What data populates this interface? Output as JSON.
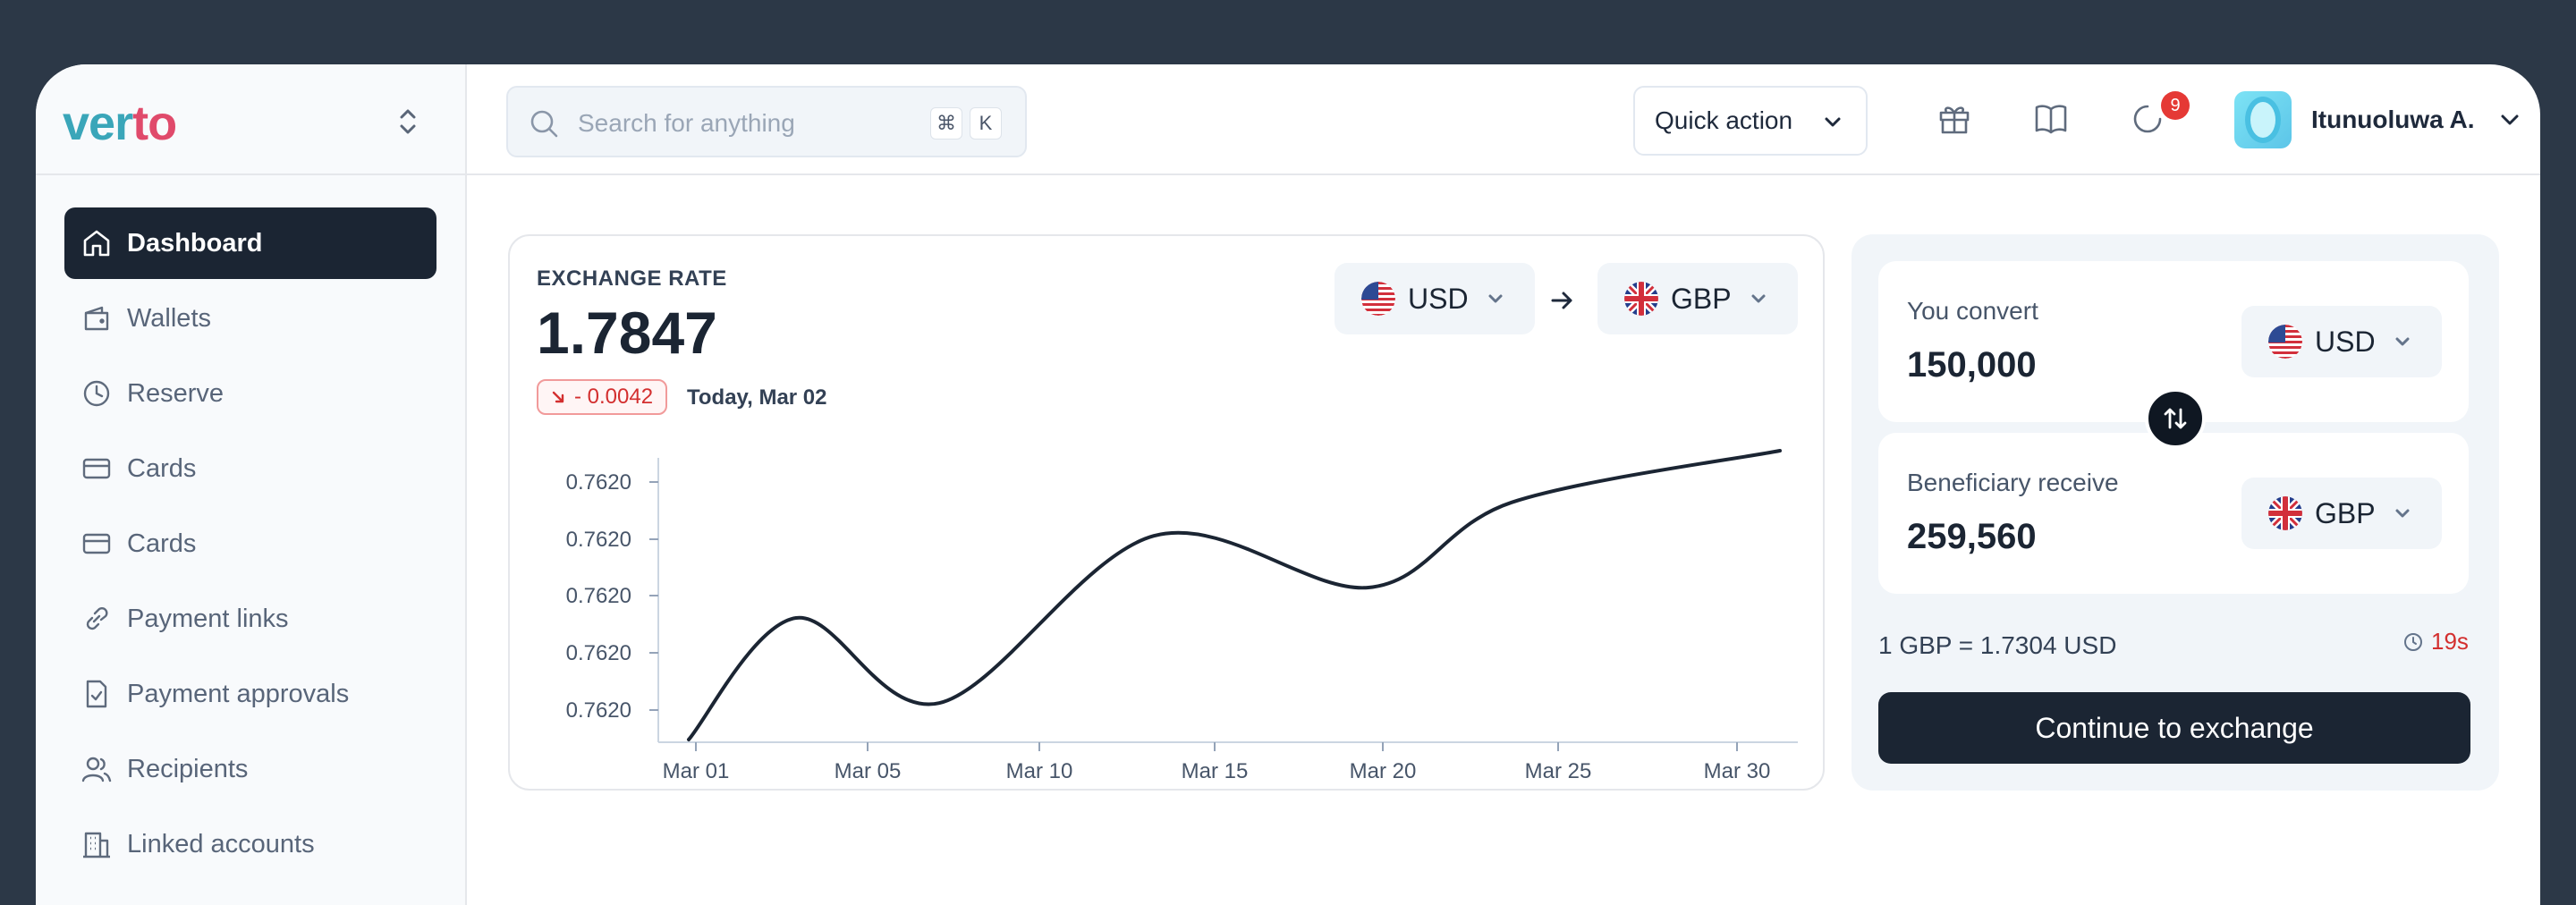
{
  "brand": {
    "logo_part1": "ver",
    "logo_part2": "to"
  },
  "sidebar": {
    "items": [
      {
        "label": "Dashboard",
        "icon": "home-icon",
        "active": true
      },
      {
        "label": "Wallets",
        "icon": "wallet-icon"
      },
      {
        "label": "Reserve",
        "icon": "clock-icon"
      },
      {
        "label": "Cards",
        "icon": "card-icon"
      },
      {
        "label": "Cards",
        "icon": "card-icon"
      },
      {
        "label": "Payment links",
        "icon": "link-icon"
      },
      {
        "label": "Payment approvals",
        "icon": "document-check-icon"
      },
      {
        "label": "Recipients",
        "icon": "users-icon"
      },
      {
        "label": "Linked accounts",
        "icon": "building-icon"
      }
    ]
  },
  "header": {
    "search": {
      "placeholder": "Search for anything",
      "shortcut_mod": "⌘",
      "shortcut_key": "K"
    },
    "quick_action_label": "Quick action",
    "notifications_count": "9",
    "user_name": "Itunuoluwa A."
  },
  "exchange_rate": {
    "label": "EXCHANGE RATE",
    "value": "1.7847",
    "delta": "- 0.0042",
    "date": "Today, Mar 02",
    "from_currency": "USD",
    "to_currency": "GBP"
  },
  "chart_data": {
    "type": "line",
    "x_ticks": [
      "Mar 01",
      "Mar 05",
      "Mar 10",
      "Mar 15",
      "Mar 20",
      "Mar 25",
      "Mar 30"
    ],
    "y_ticks": [
      "0.7620",
      "0.7620",
      "0.7620",
      "0.7620",
      "0.7620"
    ],
    "series": [
      {
        "x": [
          0,
          3,
          7,
          13,
          19,
          23,
          30.5
        ],
        "y": [
          0.05,
          0.45,
          0.17,
          0.72,
          0.55,
          0.83,
          1.0
        ]
      }
    ],
    "grid": false,
    "color": "#1b2533"
  },
  "converter": {
    "send_label": "You convert",
    "send_amount": "150,000",
    "send_currency": "USD",
    "receive_label": "Beneficiary receive",
    "receive_amount": "259,560",
    "receive_currency": "GBP",
    "rate_text": "1 GBP = 1.7304 USD",
    "timer": "19s",
    "cta_label": "Continue to exchange"
  },
  "colors": {
    "primary_dark": "#1b2533",
    "alert_red": "#d32f2f",
    "logo_teal": "#3aa6b9",
    "logo_pink": "#e04a6b"
  }
}
